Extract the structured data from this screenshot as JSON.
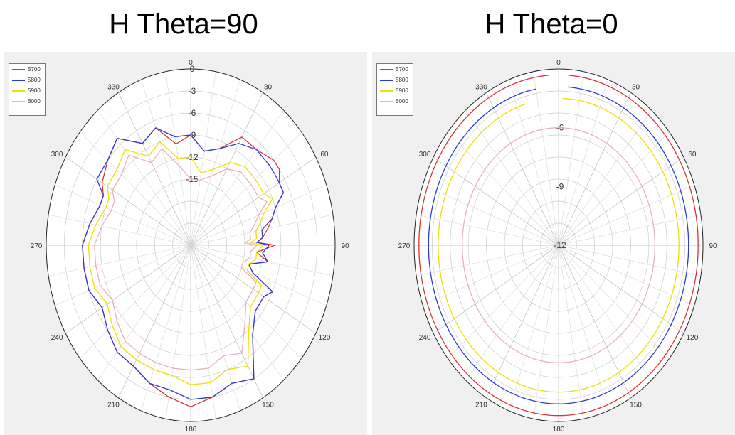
{
  "chart_data": [
    {
      "type": "polar-line",
      "title": "H Theta=90",
      "angle_ticks": [
        "0",
        "30",
        "60",
        "90",
        "120",
        "150",
        "180",
        "210",
        "240",
        "270",
        "300",
        "330"
      ],
      "radial_ticks": [
        "0",
        "-3",
        "-6",
        "-9",
        "-12",
        "-15"
      ],
      "rlim": [
        -24,
        0
      ],
      "grid": true,
      "legend_placement": "top-left",
      "series": [
        {
          "name": "5700",
          "color": "#e03030",
          "angles": [
            0,
            10,
            20,
            30,
            40,
            50,
            55,
            60,
            65,
            70,
            75,
            80,
            85,
            88,
            90,
            95,
            100,
            105,
            110,
            115,
            120,
            130,
            140,
            150,
            160,
            170,
            180,
            190,
            200,
            210,
            220,
            230,
            240,
            250,
            260,
            270,
            280,
            290,
            295,
            300,
            310,
            320,
            330,
            340,
            350
          ],
          "values": [
            -9,
            -11,
            -10,
            -7,
            -7,
            -6,
            -6,
            -7,
            -7,
            -9,
            -10,
            -11,
            -12,
            -13,
            -10,
            -13,
            -11,
            -14,
            -13,
            -9,
            -10,
            -10,
            -8,
            -3,
            -4,
            -3,
            -2,
            -3,
            -4,
            -5,
            -5,
            -6,
            -7,
            -6,
            -6,
            -6,
            -7,
            -8,
            -8,
            -7,
            -6,
            -5,
            -8,
            -7,
            -10
          ]
        },
        {
          "name": "5800",
          "color": "#2a3bd8",
          "angles": [
            0,
            10,
            20,
            30,
            40,
            50,
            55,
            60,
            65,
            70,
            75,
            80,
            85,
            88,
            90,
            95,
            100,
            105,
            110,
            115,
            120,
            130,
            140,
            150,
            160,
            170,
            180,
            190,
            200,
            210,
            220,
            230,
            240,
            250,
            260,
            270,
            280,
            290,
            295,
            300,
            310,
            320,
            330,
            340,
            350
          ],
          "values": [
            -9,
            -11,
            -10,
            -8,
            -7,
            -7,
            -7,
            -7,
            -7,
            -9,
            -10,
            -12,
            -12,
            -13,
            -11,
            -12,
            -11,
            -14,
            -13,
            -9,
            -10,
            -10,
            -8,
            -3,
            -4,
            -3,
            -3,
            -4,
            -4,
            -5,
            -5,
            -6,
            -7,
            -6,
            -6,
            -6,
            -7,
            -8,
            -8,
            -6,
            -6,
            -5,
            -8,
            -7,
            -9
          ]
        },
        {
          "name": "5900",
          "color": "#f0e000",
          "angles": [
            0,
            10,
            20,
            30,
            40,
            50,
            55,
            60,
            65,
            70,
            75,
            80,
            85,
            88,
            90,
            95,
            100,
            105,
            110,
            115,
            120,
            130,
            140,
            150,
            160,
            170,
            180,
            190,
            200,
            210,
            220,
            230,
            240,
            250,
            260,
            270,
            280,
            290,
            295,
            300,
            310,
            320,
            330,
            340,
            350
          ],
          "values": [
            -12,
            -14,
            -13,
            -11,
            -10,
            -10,
            -10,
            -10,
            -9,
            -11,
            -12,
            -13,
            -13,
            -14,
            -12,
            -13,
            -13,
            -14,
            -14,
            -11,
            -11,
            -11,
            -9,
            -5,
            -6,
            -5,
            -5,
            -6,
            -6,
            -6,
            -6,
            -7,
            -8,
            -7,
            -7,
            -7,
            -8,
            -9,
            -9,
            -8,
            -8,
            -7,
            -10,
            -9,
            -12
          ]
        },
        {
          "name": "6000",
          "color": "#e6b3b8",
          "angles": [
            0,
            10,
            20,
            30,
            40,
            50,
            55,
            60,
            65,
            70,
            75,
            80,
            85,
            88,
            90,
            95,
            100,
            105,
            110,
            115,
            120,
            130,
            140,
            150,
            160,
            170,
            180,
            190,
            200,
            210,
            220,
            230,
            240,
            250,
            260,
            270,
            280,
            290,
            295,
            300,
            310,
            320,
            330,
            340,
            350
          ],
          "values": [
            -15,
            -15,
            -14,
            -12,
            -11,
            -11,
            -11,
            -11,
            -10,
            -12,
            -13,
            -14,
            -14,
            -15,
            -13,
            -14,
            -14,
            -15,
            -15,
            -12,
            -12,
            -12,
            -10,
            -7,
            -8,
            -7,
            -7,
            -7,
            -7,
            -7,
            -7,
            -8,
            -9,
            -8,
            -8,
            -8,
            -9,
            -10,
            -10,
            -9,
            -9,
            -8,
            -11,
            -10,
            -13
          ]
        }
      ]
    },
    {
      "type": "polar-line",
      "title": "H Theta=0",
      "angle_ticks": [
        "0",
        "30",
        "60",
        "90",
        "120",
        "150",
        "180",
        "210",
        "240",
        "270",
        "300",
        "330"
      ],
      "radial_ticks": [
        "-6",
        "-9",
        "-12"
      ],
      "rlim": [
        -12,
        -3
      ],
      "grid": true,
      "legend_placement": "top-left",
      "series": [
        {
          "name": "5700",
          "color": "#e03030",
          "angles": [
            4,
            356
          ],
          "values": [
            -3.3,
            -3.3
          ]
        },
        {
          "name": "5800",
          "color": "#2a3bd8",
          "angles": [
            4,
            350
          ],
          "values": [
            -3.9,
            -3.9
          ]
        },
        {
          "name": "5900",
          "color": "#f0e000",
          "angles": [
            2,
            344
          ],
          "values": [
            -4.5,
            -4.5
          ]
        },
        {
          "name": "6000",
          "color": "#e6b3b8",
          "angles": [
            0,
            360
          ],
          "values": [
            -6.0,
            -6.0
          ]
        }
      ]
    }
  ]
}
